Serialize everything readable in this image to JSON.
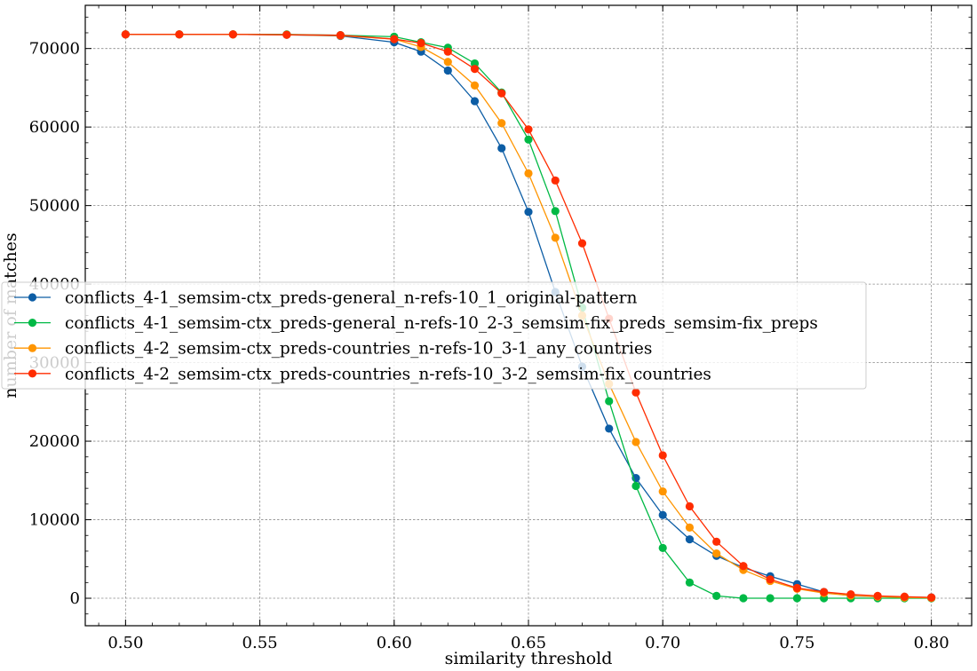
{
  "chart_data": {
    "type": "line",
    "title": "",
    "xlabel": "similarity threshold",
    "ylabel": "number of matches",
    "xlim": [
      0.485,
      0.815
    ],
    "ylim": [
      -3500,
      75500
    ],
    "xticks": [
      0.5,
      0.55,
      0.6,
      0.65,
      0.7,
      0.75,
      0.8
    ],
    "xtick_labels": [
      "0.50",
      "0.55",
      "0.60",
      "0.65",
      "0.70",
      "0.75",
      "0.80"
    ],
    "yticks": [
      0,
      10000,
      20000,
      30000,
      40000,
      50000,
      60000,
      70000
    ],
    "ytick_labels": [
      "0",
      "10000",
      "20000",
      "30000",
      "40000",
      "50000",
      "60000",
      "70000"
    ],
    "grid": true,
    "legend_position": "center-left",
    "x": [
      0.5,
      0.52,
      0.54,
      0.56,
      0.58,
      0.6,
      0.61,
      0.62,
      0.63,
      0.64,
      0.65,
      0.66,
      0.67,
      0.68,
      0.69,
      0.7,
      0.71,
      0.72,
      0.73,
      0.74,
      0.75,
      0.76,
      0.77,
      0.78,
      0.79,
      0.8
    ],
    "series": [
      {
        "name": "conflicts_4-1_semsim-ctx_preds-general_n-refs-10_1_original-pattern",
        "color": "#0C5DA5",
        "values": [
          71800,
          71800,
          71800,
          71750,
          71600,
          70800,
          69600,
          67200,
          63300,
          57300,
          49200,
          39000,
          29500,
          21600,
          15300,
          10600,
          7500,
          5400,
          3900,
          2800,
          1800,
          800,
          300,
          200,
          150,
          100
        ]
      },
      {
        "name": "conflicts_4-1_semsim-ctx_preds-general_n-refs-10_2-3_semsim-fix_preds_semsim-fix_preps",
        "color": "#00B945",
        "values": [
          71800,
          71800,
          71800,
          71800,
          71700,
          71500,
          70800,
          70100,
          68100,
          64400,
          58400,
          49300,
          37000,
          25100,
          14300,
          6400,
          2000,
          300,
          0,
          0,
          0,
          0,
          0,
          0,
          0,
          0
        ]
      },
      {
        "name": "conflicts_4-2_semsim-ctx_preds-countries_n-refs-10_3-1_any_countries",
        "color": "#FF9500",
        "values": [
          71800,
          71800,
          71800,
          71750,
          71650,
          71200,
          70200,
          68300,
          65300,
          60500,
          54100,
          45900,
          36000,
          27300,
          19900,
          13600,
          9000,
          5700,
          3600,
          2200,
          1200,
          650,
          350,
          200,
          100,
          50
        ]
      },
      {
        "name": "conflicts_4-2_semsim-ctx_preds-countries_n-refs-10_3-2_semsim-fix_countries",
        "color": "#FF2C00",
        "values": [
          71800,
          71800,
          71800,
          71750,
          71700,
          71200,
          70700,
          69600,
          67400,
          64300,
          59700,
          53200,
          45200,
          35600,
          26200,
          18200,
          11700,
          7200,
          4100,
          2400,
          1300,
          800,
          500,
          300,
          200,
          100
        ]
      }
    ]
  }
}
